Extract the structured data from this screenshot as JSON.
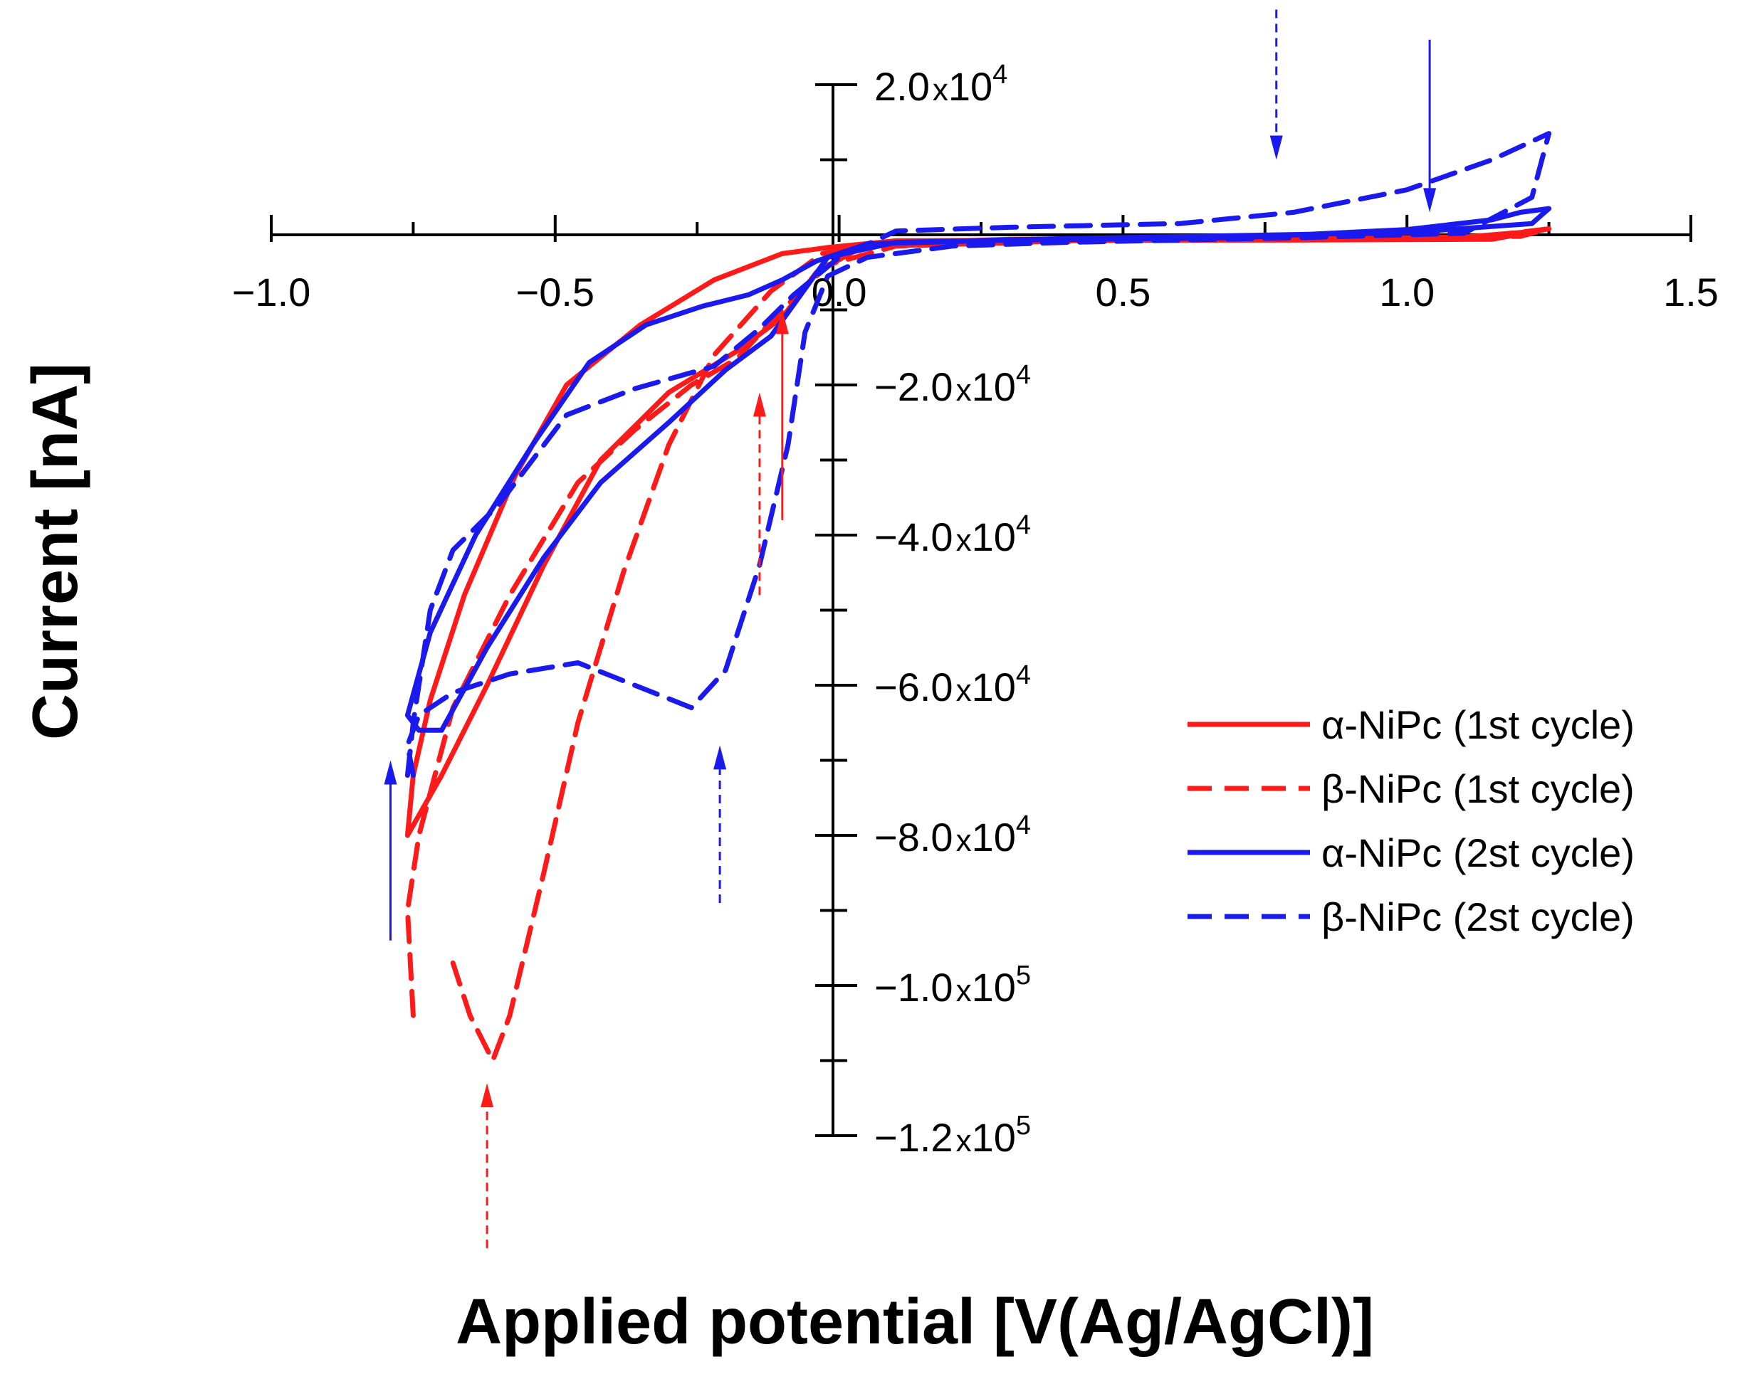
{
  "chart_data": {
    "type": "line",
    "title": "",
    "xlabel": "Applied potential [V(Ag/AgCl)]",
    "ylabel": "Current [nA]",
    "xlim": [
      -1.0,
      1.5
    ],
    "ylim": [
      -120000,
      20000
    ],
    "grid": false,
    "legend_position": "right",
    "x_ticks": [
      {
        "value": -1.0,
        "label": "−1.0"
      },
      {
        "value": -0.5,
        "label": "−0.5"
      },
      {
        "value": 0.0,
        "label": "0.0"
      },
      {
        "value": 0.5,
        "label": "0.5"
      },
      {
        "value": 1.0,
        "label": "1.0"
      },
      {
        "value": 1.5,
        "label": "1.5"
      }
    ],
    "y_ticks": [
      {
        "value": 20000,
        "mantissa": "2.0",
        "times": "x",
        "base": "10",
        "exp": "4"
      },
      {
        "value": -20000,
        "mantissa": "−2.0",
        "times": "x",
        "base": "10",
        "exp": "4"
      },
      {
        "value": -40000,
        "mantissa": "−4.0",
        "times": "x",
        "base": "10",
        "exp": "4"
      },
      {
        "value": -60000,
        "mantissa": "−6.0",
        "times": "x",
        "base": "10",
        "exp": "4"
      },
      {
        "value": -80000,
        "mantissa": "−8.0",
        "times": "x",
        "base": "10",
        "exp": "4"
      },
      {
        "value": -100000,
        "mantissa": "−1.0",
        "times": "x",
        "base": "10",
        "exp": "5"
      },
      {
        "value": -120000,
        "mantissa": "−1.2",
        "times": "x",
        "base": "10",
        "exp": "5"
      }
    ],
    "series": [
      {
        "name": "α-NiPc (1st cycle)",
        "color": "#ff1a1a",
        "dash": "solid",
        "points": [
          [
            -0.76,
            -80000
          ],
          [
            -0.7,
            -72000
          ],
          [
            -0.62,
            -60000
          ],
          [
            -0.52,
            -44000
          ],
          [
            -0.42,
            -30000
          ],
          [
            -0.3,
            -21000
          ],
          [
            -0.18,
            -15500
          ],
          [
            -0.1,
            -11000
          ],
          [
            -0.04,
            -5000
          ],
          [
            0.05,
            -1200
          ],
          [
            0.3,
            -600
          ],
          [
            0.6,
            -500
          ],
          [
            0.9,
            -500
          ],
          [
            1.1,
            -300
          ],
          [
            1.2,
            300
          ],
          [
            1.25,
            800
          ],
          [
            1.15,
            -600
          ],
          [
            0.8,
            -700
          ],
          [
            0.4,
            -700
          ],
          [
            0.1,
            -800
          ],
          [
            -0.02,
            -1700
          ],
          [
            -0.1,
            -2500
          ],
          [
            -0.22,
            -6000
          ],
          [
            -0.35,
            -12000
          ],
          [
            -0.48,
            -20000
          ],
          [
            -0.57,
            -32000
          ],
          [
            -0.66,
            -48000
          ],
          [
            -0.72,
            -62000
          ],
          [
            -0.75,
            -72000
          ],
          [
            -0.76,
            -80000
          ]
        ]
      },
      {
        "name": "β-NiPc (1st cycle)",
        "color": "#ff1a1a",
        "dash": "dashed",
        "points": [
          [
            -0.75,
            -104000
          ],
          [
            -0.76,
            -90000
          ],
          [
            -0.74,
            -80000
          ],
          [
            -0.68,
            -63000
          ],
          [
            -0.58,
            -48000
          ],
          [
            -0.46,
            -33000
          ],
          [
            -0.36,
            -26000
          ],
          [
            -0.26,
            -20000
          ],
          [
            -0.18,
            -16500
          ],
          [
            -0.1,
            -10000
          ],
          [
            -0.02,
            -4000
          ],
          [
            0.1,
            -1500
          ],
          [
            0.4,
            -800
          ],
          [
            0.9,
            -500
          ],
          [
            1.2,
            -200
          ],
          [
            1.25,
            800
          ],
          [
            1.1,
            -500
          ],
          [
            0.5,
            -800
          ],
          [
            0.05,
            -1500
          ],
          [
            -0.03,
            -2500
          ],
          [
            -0.12,
            -7500
          ],
          [
            -0.22,
            -16000
          ],
          [
            -0.3,
            -28000
          ],
          [
            -0.38,
            -45000
          ],
          [
            -0.46,
            -65000
          ],
          [
            -0.52,
            -85000
          ],
          [
            -0.58,
            -104000
          ],
          [
            -0.61,
            -110000
          ],
          [
            -0.65,
            -104000
          ],
          [
            -0.68,
            -97000
          ]
        ]
      },
      {
        "name": "α-NiPc (2st cycle)",
        "color": "#1a1aee",
        "dash": "solid",
        "points": [
          [
            -0.74,
            -66000
          ],
          [
            -0.76,
            -64000
          ],
          [
            -0.72,
            -53000
          ],
          [
            -0.64,
            -40000
          ],
          [
            -0.54,
            -28000
          ],
          [
            -0.44,
            -17000
          ],
          [
            -0.34,
            -12000
          ],
          [
            -0.24,
            -9500
          ],
          [
            -0.16,
            -8000
          ],
          [
            -0.1,
            -6000
          ],
          [
            -0.04,
            -3500
          ],
          [
            0.05,
            -1200
          ],
          [
            0.3,
            -700
          ],
          [
            0.7,
            -400
          ],
          [
            1.0,
            700
          ],
          [
            1.15,
            2000
          ],
          [
            1.2,
            3000
          ],
          [
            1.25,
            3500
          ],
          [
            1.22,
            1500
          ],
          [
            1.0,
            300
          ],
          [
            0.7,
            -100
          ],
          [
            0.4,
            -500
          ],
          [
            0.1,
            -1000
          ],
          [
            -0.02,
            -3000
          ],
          [
            -0.12,
            -13500
          ],
          [
            -0.2,
            -18000
          ],
          [
            -0.3,
            -25000
          ],
          [
            -0.42,
            -33000
          ],
          [
            -0.52,
            -43000
          ],
          [
            -0.62,
            -55000
          ],
          [
            -0.7,
            -66000
          ],
          [
            -0.74,
            -66000
          ]
        ]
      },
      {
        "name": "β-NiPc (2st cycle)",
        "color": "#1a1aee",
        "dash": "dashed",
        "points": [
          [
            -0.76,
            -72000
          ],
          [
            -0.75,
            -65000
          ],
          [
            -0.72,
            -50000
          ],
          [
            -0.68,
            -42000
          ],
          [
            -0.6,
            -36000
          ],
          [
            -0.48,
            -24000
          ],
          [
            -0.36,
            -20500
          ],
          [
            -0.22,
            -17500
          ],
          [
            -0.14,
            -12500
          ],
          [
            -0.08,
            -8000
          ],
          [
            0.0,
            -3000
          ],
          [
            0.1,
            500
          ],
          [
            0.3,
            1000
          ],
          [
            0.6,
            1500
          ],
          [
            0.8,
            3000
          ],
          [
            1.0,
            6000
          ],
          [
            1.15,
            10000
          ],
          [
            1.25,
            13500
          ],
          [
            1.22,
            5000
          ],
          [
            1.1,
            200
          ],
          [
            0.8,
            -400
          ],
          [
            0.4,
            -1000
          ],
          [
            0.2,
            -1500
          ],
          [
            0.05,
            -3000
          ],
          [
            -0.02,
            -5500
          ],
          [
            -0.06,
            -13000
          ],
          [
            -0.09,
            -28000
          ],
          [
            -0.14,
            -44000
          ],
          [
            -0.2,
            -58000
          ],
          [
            -0.26,
            -63000
          ],
          [
            -0.36,
            -60000
          ],
          [
            -0.46,
            -57000
          ],
          [
            -0.58,
            -58500
          ],
          [
            -0.68,
            -61000
          ],
          [
            -0.74,
            -64000
          ],
          [
            -0.76,
            -68000
          ],
          [
            -0.75,
            -72000
          ]
        ]
      }
    ],
    "annotations": [
      {
        "type": "arrow",
        "color": "#1a1aee",
        "dash": "dashed",
        "x": 0.77,
        "from": 30000,
        "to": 10000
      },
      {
        "type": "arrow",
        "color": "#1a1aee",
        "dash": "solid",
        "x": 1.04,
        "from": 26000,
        "to": 3000
      },
      {
        "type": "arrow",
        "color": "#ff1a1a",
        "dash": "solid",
        "x": -0.1,
        "from": -38000,
        "to": -10000
      },
      {
        "type": "arrow",
        "color": "#ff1a1a",
        "dash": "dashed",
        "x": -0.14,
        "from": -48000,
        "to": -21000
      },
      {
        "type": "arrow",
        "color": "#1a1aee",
        "dash": "dashed",
        "x": -0.21,
        "from": -89000,
        "to": -68000
      },
      {
        "type": "arrow",
        "color": "#1a1aee",
        "dash": "solid",
        "x": -0.79,
        "from": -94000,
        "to": -70000
      },
      {
        "type": "arrow",
        "color": "#ff1a1a",
        "dash": "dashed",
        "x": -0.62,
        "from": -135000,
        "to": -113000
      }
    ]
  }
}
